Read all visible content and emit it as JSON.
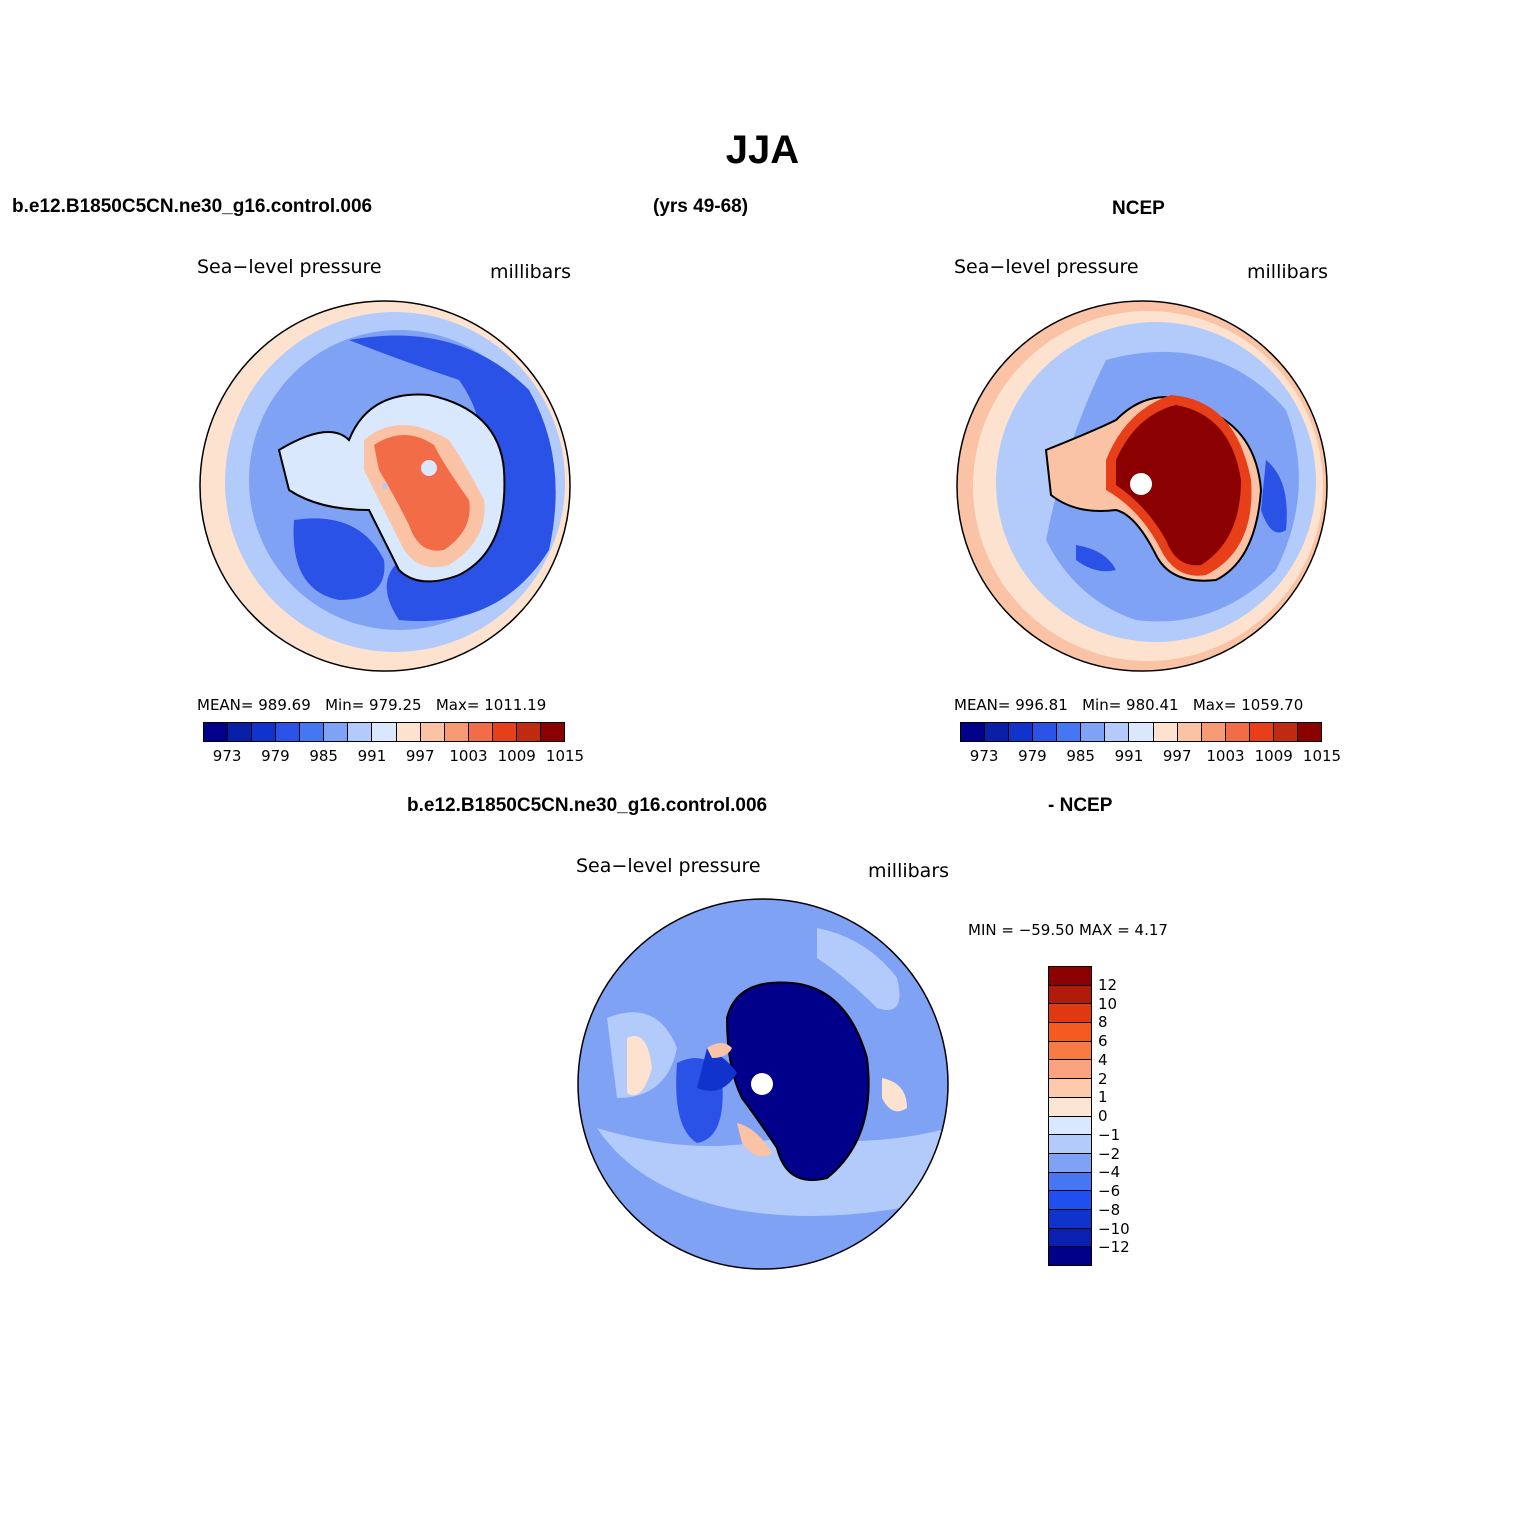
{
  "title": "JJA",
  "header": {
    "case_name": "b.e12.B1850C5CN.ne30_g16.control.006",
    "years": "(yrs 49-68)",
    "obs_name": "NCEP"
  },
  "diff_header": {
    "case_name": "b.e12.B1850C5CN.ne30_g16.control.006",
    "obs_label": "- NCEP"
  },
  "panels": {
    "model": {
      "variable": "Sea−level pressure",
      "units": "millibars",
      "stats": {
        "mean_label": "MEAN=",
        "mean": "989.69",
        "min_label": "Min=",
        "min": "979.25",
        "max_label": "Max=",
        "max": "1011.19"
      }
    },
    "obs": {
      "variable": "Sea−level pressure",
      "units": "millibars",
      "stats": {
        "mean_label": "MEAN=",
        "mean": "996.81",
        "min_label": "Min=",
        "min": "980.41",
        "max_label": "Max=",
        "max": "1059.70"
      }
    },
    "diff": {
      "variable": "Sea−level pressure",
      "units": "millibars",
      "minmax": "MIN = −59.50  MAX =    4.17"
    }
  },
  "colorbar_abs": {
    "colors": [
      "#00008b",
      "#0a1fa8",
      "#1033cc",
      "#2a52e6",
      "#4677f2",
      "#7fa2f5",
      "#b2cbfa",
      "#d9e8fd",
      "#fde3cf",
      "#fbc3a6",
      "#f79a74",
      "#f26c47",
      "#e63f1a",
      "#c02a10",
      "#8b0000"
    ],
    "labels": [
      "973",
      "979",
      "985",
      "991",
      "997",
      "1003",
      "1009",
      "1015"
    ]
  },
  "colorbar_diff": {
    "colors_top_to_bottom": [
      "#8b0000",
      "#b01a08",
      "#e03810",
      "#f75a20",
      "#f77c44",
      "#fba37e",
      "#fcc9ab",
      "#fde5d3",
      "#d9e8fd",
      "#b2cbfa",
      "#7fa2f5",
      "#4677f2",
      "#1f4ff0",
      "#1033cc",
      "#0a20b0",
      "#00008b"
    ],
    "labels_top_to_bottom": [
      "12",
      "10",
      "8",
      "6",
      "4",
      "2",
      "1",
      "0",
      "−1",
      "−2",
      "−4",
      "−6",
      "−8",
      "−10",
      "−12"
    ]
  },
  "map_colors": {
    "ocean_outer": "#fde3cf",
    "ocean_mid": "#b2cbfa",
    "ocean_band": "#7fa2f5",
    "ocean_deep": "#2a52e6",
    "ice_model": "#d9e8fd",
    "high_model": "#f26c47",
    "ice_obs": "#8b0000",
    "diff_bg": "#7fa2f5",
    "diff_ice": "#00008b",
    "pole_dot": "#ffffff"
  }
}
